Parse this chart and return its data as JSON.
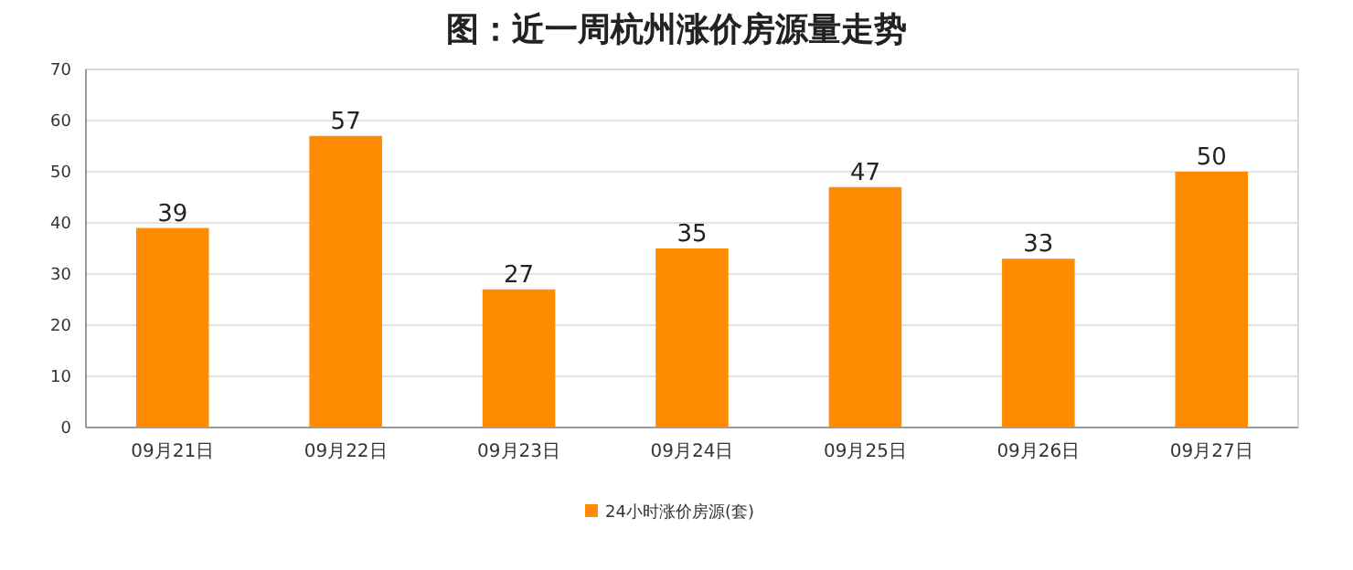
{
  "chart_data": {
    "type": "bar",
    "title": "图：近一周杭州涨价房源量走势",
    "categories": [
      "09月21日",
      "09月22日",
      "09月23日",
      "09月24日",
      "09月25日",
      "09月26日",
      "09月27日"
    ],
    "series": [
      {
        "name": "24小时涨价房源(套)",
        "color": "#ff8c00",
        "values": [
          39,
          57,
          27,
          35,
          47,
          33,
          50
        ]
      }
    ],
    "ylim": [
      0,
      70
    ],
    "yticks": [
      0,
      10,
      20,
      30,
      40,
      50,
      60,
      70
    ],
    "grid": "y",
    "legend": "bottom",
    "data_labels": true
  }
}
